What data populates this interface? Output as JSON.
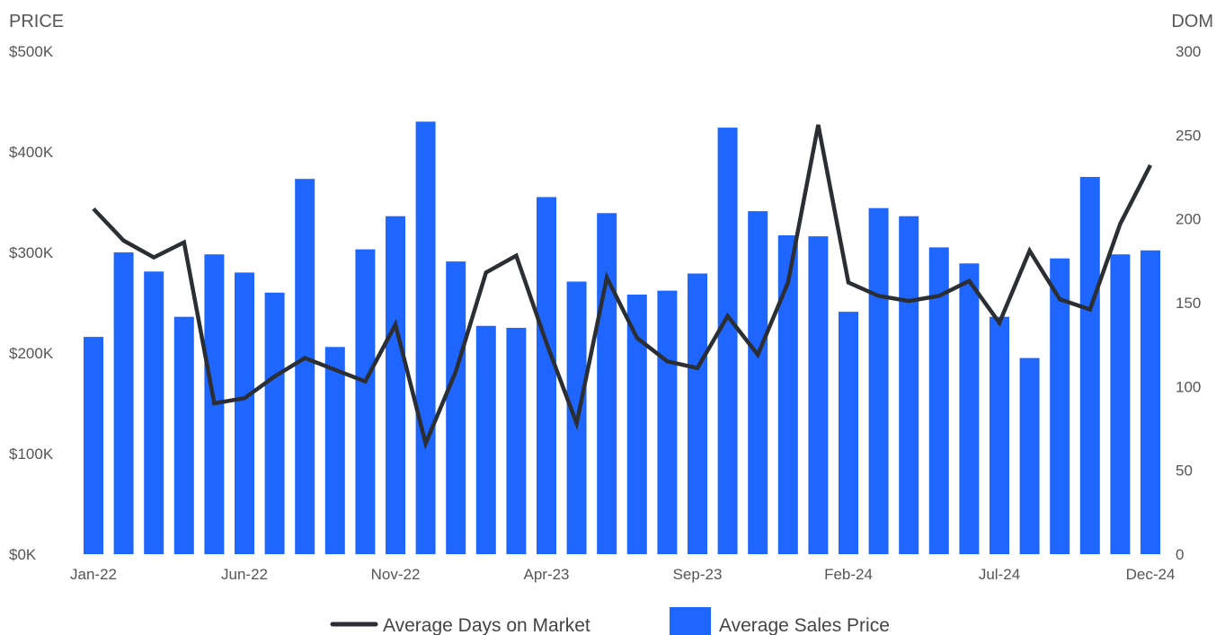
{
  "colors": {
    "bar": "#1f66ff",
    "line": "#2b2f33"
  },
  "chart_data": {
    "type": "bar",
    "y_left_title": "PRICE",
    "y_right_title": "DOM",
    "y_left_ticks": [
      "$0K",
      "$100K",
      "$200K",
      "$300K",
      "$400K",
      "$500K"
    ],
    "y_right_ticks": [
      "0",
      "50",
      "100",
      "150",
      "200",
      "250",
      "300"
    ],
    "ylim_left": [
      0,
      500000
    ],
    "ylim_right": [
      0,
      300
    ],
    "x_tick_labels": [
      {
        "index": 0,
        "label": "Jan-22"
      },
      {
        "index": 5,
        "label": "Jun-22"
      },
      {
        "index": 10,
        "label": "Nov-22"
      },
      {
        "index": 15,
        "label": "Apr-23"
      },
      {
        "index": 20,
        "label": "Sep-23"
      },
      {
        "index": 25,
        "label": "Feb-24"
      },
      {
        "index": 30,
        "label": "Jul-24"
      },
      {
        "index": 35,
        "label": "Dec-24"
      }
    ],
    "categories": [
      "Jan-22",
      "Feb-22",
      "Mar-22",
      "Apr-22",
      "May-22",
      "Jun-22",
      "Jul-22",
      "Aug-22",
      "Sep-22",
      "Oct-22",
      "Nov-22",
      "Dec-22",
      "Jan-23",
      "Feb-23",
      "Mar-23",
      "Apr-23",
      "May-23",
      "Jun-23",
      "Jul-23",
      "Aug-23",
      "Sep-23",
      "Oct-23",
      "Nov-23",
      "Dec-23",
      "Jan-24",
      "Feb-24",
      "Mar-24",
      "Apr-24",
      "May-24",
      "Jun-24",
      "Jul-24",
      "Aug-24",
      "Sep-24",
      "Oct-24",
      "Nov-24",
      "Dec-24"
    ],
    "series": [
      {
        "name": "Average Sales Price",
        "type": "bar",
        "axis": "left",
        "values": [
          216000,
          300000,
          281000,
          236000,
          298000,
          280000,
          260000,
          373000,
          206000,
          303000,
          336000,
          430000,
          291000,
          227000,
          225000,
          355000,
          271000,
          339000,
          258000,
          262000,
          279000,
          424000,
          341000,
          317000,
          316000,
          241000,
          344000,
          336000,
          305000,
          289000,
          236000,
          195000,
          294000,
          375000,
          298000,
          302000
        ]
      },
      {
        "name": "Average Days on Market",
        "type": "line",
        "axis": "right",
        "values": [
          206,
          187,
          177,
          186,
          90,
          93,
          106,
          117,
          110,
          103,
          137,
          66,
          109,
          168,
          178,
          126,
          78,
          165,
          129,
          115,
          111,
          142,
          119,
          162,
          256,
          162,
          154,
          151,
          154,
          163,
          138,
          181,
          152,
          146,
          197,
          232
        ]
      }
    ],
    "legend": {
      "placement": "bottom"
    }
  }
}
